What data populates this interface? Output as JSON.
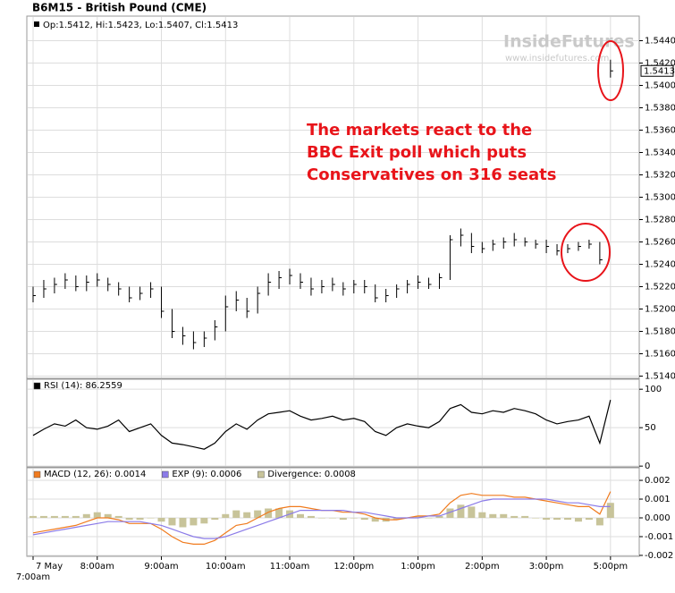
{
  "chart_data": [
    {
      "type": "ohlc",
      "title": "B6M15 - British Pound (CME)",
      "legend": "Op:1.5412, Hi:1.5423, Lo:1.5407, Cl:1.5413",
      "last_price_label": "1.5413",
      "watermark": [
        "InsideFutures",
        "www.insidefutures.com"
      ],
      "annotation": [
        "The markets react to the",
        "BBC Exit poll which puts",
        "Conservatives on 316 seats"
      ],
      "date_label": "7 May",
      "categories": [
        "7:00am",
        null,
        null,
        null,
        null,
        null,
        "8:00am",
        null,
        null,
        null,
        null,
        null,
        "9:00am",
        null,
        null,
        null,
        null,
        null,
        "10:00am",
        null,
        null,
        null,
        null,
        null,
        "11:00am",
        null,
        null,
        null,
        null,
        null,
        "12:00pm",
        null,
        null,
        null,
        null,
        null,
        "1:00pm",
        null,
        null,
        null,
        null,
        null,
        "2:00pm",
        null,
        null,
        null,
        null,
        null,
        "3:00pm",
        null,
        null,
        null,
        null,
        null,
        "5:00pm"
      ],
      "high": [
        1.522,
        1.5226,
        1.5228,
        1.5232,
        1.523,
        1.523,
        1.5232,
        1.5228,
        1.5224,
        1.522,
        1.522,
        1.5224,
        1.522,
        1.52,
        1.5184,
        1.518,
        1.518,
        1.519,
        1.5212,
        1.5216,
        1.521,
        1.522,
        1.5232,
        1.5234,
        1.5236,
        1.5232,
        1.5228,
        1.5226,
        1.5228,
        1.5224,
        1.5226,
        1.5226,
        1.5222,
        1.5218,
        1.5222,
        1.5226,
        1.523,
        1.5228,
        1.5232,
        1.5266,
        1.5272,
        1.5268,
        1.526,
        1.5262,
        1.5264,
        1.5268,
        1.5264,
        1.5262,
        1.5262,
        1.5258,
        1.5258,
        1.526,
        1.5262,
        1.526,
        1.5423
      ],
      "low": [
        1.5206,
        1.521,
        1.5214,
        1.5218,
        1.5216,
        1.5216,
        1.522,
        1.5216,
        1.5212,
        1.5206,
        1.5208,
        1.521,
        1.5192,
        1.5174,
        1.5168,
        1.5164,
        1.5166,
        1.5172,
        1.518,
        1.5198,
        1.5192,
        1.5196,
        1.5212,
        1.5218,
        1.5222,
        1.5218,
        1.5212,
        1.5214,
        1.5216,
        1.5212,
        1.5214,
        1.5214,
        1.5206,
        1.5206,
        1.521,
        1.5214,
        1.5218,
        1.5218,
        1.5218,
        1.5226,
        1.5256,
        1.525,
        1.525,
        1.5252,
        1.5254,
        1.5256,
        1.5256,
        1.5254,
        1.525,
        1.5248,
        1.525,
        1.5252,
        1.5254,
        1.524,
        1.5407
      ],
      "close": [
        1.5212,
        1.5218,
        1.5222,
        1.5226,
        1.522,
        1.5224,
        1.5226,
        1.5222,
        1.5218,
        1.521,
        1.5214,
        1.5218,
        1.5198,
        1.518,
        1.5176,
        1.517,
        1.5174,
        1.5184,
        1.5202,
        1.5208,
        1.5198,
        1.5214,
        1.5224,
        1.5228,
        1.523,
        1.5224,
        1.5218,
        1.522,
        1.5222,
        1.5218,
        1.5222,
        1.522,
        1.521,
        1.5212,
        1.5218,
        1.5222,
        1.5224,
        1.5222,
        1.5228,
        1.5262,
        1.5266,
        1.5256,
        1.5254,
        1.5258,
        1.526,
        1.5262,
        1.526,
        1.5258,
        1.5256,
        1.5252,
        1.5254,
        1.5256,
        1.5258,
        1.5244,
        1.5413
      ],
      "color": "#000000",
      "ylim": [
        1.5138,
        1.5462
      ],
      "yticks": [
        {
          "value": 1.544,
          "label": "1.5440"
        },
        {
          "value": 1.542,
          "label": "1.5420"
        },
        {
          "value": 1.54,
          "label": "1.5400"
        },
        {
          "value": 1.538,
          "label": "1.5380"
        },
        {
          "value": 1.536,
          "label": "1.5360"
        },
        {
          "value": 1.534,
          "label": "1.5340"
        },
        {
          "value": 1.532,
          "label": "1.5320"
        },
        {
          "value": 1.53,
          "label": "1.5300"
        },
        {
          "value": 1.528,
          "label": "1.5280"
        },
        {
          "value": 1.526,
          "label": "1.5260"
        },
        {
          "value": 1.524,
          "label": "1.5240"
        },
        {
          "value": 1.522,
          "label": "1.5220"
        },
        {
          "value": 1.52,
          "label": "1.5200"
        },
        {
          "value": 1.518,
          "label": "1.5180"
        },
        {
          "value": 1.516,
          "label": "1.5160"
        },
        {
          "value": 1.514,
          "label": "1.5140"
        }
      ],
      "grid": true
    },
    {
      "type": "line",
      "series": [
        {
          "name": "RSI (14): 86.2559",
          "color": "#000000",
          "kind": "line",
          "values": [
            40,
            48,
            55,
            52,
            60,
            50,
            48,
            52,
            60,
            45,
            50,
            55,
            40,
            30,
            28,
            25,
            22,
            30,
            45,
            55,
            48,
            60,
            68,
            70,
            72,
            65,
            60,
            62,
            65,
            60,
            62,
            58,
            45,
            40,
            50,
            55,
            52,
            50,
            58,
            75,
            80,
            70,
            68,
            72,
            70,
            75,
            72,
            68,
            60,
            55,
            58,
            60,
            65,
            30,
            86
          ]
        }
      ],
      "ylim": [
        -1,
        113
      ],
      "yticks": [
        100,
        50,
        0
      ],
      "grid": true
    },
    {
      "type": "line",
      "series": [
        {
          "name": "MACD (12, 26): 0.0014",
          "color": "#f07b1e",
          "kind": "line",
          "values": [
            -0.0008,
            -0.0007,
            -0.0006,
            -0.0005,
            -0.0004,
            -0.0002,
            0,
            0,
            -0.0001,
            -0.0003,
            -0.0003,
            -0.0003,
            -0.0006,
            -0.001,
            -0.0013,
            -0.0014,
            -0.0014,
            -0.0012,
            -0.0008,
            -0.0004,
            -0.0003,
            0,
            0.0003,
            0.0005,
            0.0006,
            0.0006,
            0.0005,
            0.0004,
            0.0004,
            0.0003,
            0.0003,
            0.0002,
            0,
            -0.0001,
            -0.0001,
            0,
            0.0001,
            0.0001,
            0.0002,
            0.0008,
            0.0012,
            0.0013,
            0.0012,
            0.0012,
            0.0012,
            0.0011,
            0.0011,
            0.001,
            0.0009,
            0.0008,
            0.0007,
            0.0006,
            0.0006,
            0.0002,
            0.0014
          ]
        },
        {
          "name": "EXP (9): 0.0006",
          "color": "#8b7be8",
          "kind": "line",
          "values": [
            -0.0009,
            -0.0008,
            -0.0007,
            -0.0006,
            -0.0005,
            -0.0004,
            -0.0003,
            -0.0002,
            -0.0002,
            -0.0002,
            -0.0002,
            -0.0003,
            -0.0004,
            -0.0006,
            -0.0008,
            -0.001,
            -0.0011,
            -0.0011,
            -0.001,
            -0.0008,
            -0.0006,
            -0.0004,
            -0.0002,
            0,
            0.0002,
            0.0004,
            0.0004,
            0.0004,
            0.0004,
            0.0004,
            0.0003,
            0.0003,
            0.0002,
            0.0001,
            0,
            0,
            0,
            0.0001,
            0.0001,
            0.0003,
            0.0005,
            0.0007,
            0.0009,
            0.001,
            0.001,
            0.001,
            0.001,
            0.001,
            0.001,
            0.0009,
            0.0008,
            0.0008,
            0.0007,
            0.0006,
            0.0006
          ]
        },
        {
          "name": "Divergence: 0.0008",
          "color": "#c8c49a",
          "kind": "bar",
          "values": [
            0.0001,
            0.0001,
            0.0001,
            0.0001,
            0.0001,
            0.0002,
            0.0003,
            0.0002,
            0.0001,
            -0.0001,
            -0.0001,
            0,
            -0.0002,
            -0.0004,
            -0.0005,
            -0.0004,
            -0.0003,
            -0.0001,
            0.0002,
            0.0004,
            0.0003,
            0.0004,
            0.0005,
            0.0005,
            0.0004,
            0.0002,
            0.0001,
            0,
            0,
            -0.0001,
            0,
            -0.0001,
            -0.0002,
            -0.0002,
            -0.0001,
            0,
            0.0001,
            0,
            0.0001,
            0.0005,
            0.0007,
            0.0006,
            0.0003,
            0.0002,
            0.0002,
            0.0001,
            0.0001,
            0,
            -0.0001,
            -0.0001,
            -0.0001,
            -0.0002,
            -0.0001,
            -0.0004,
            0.0008
          ]
        }
      ],
      "ylim": [
        -0.00205,
        0.00267
      ],
      "yticks": [
        0.002,
        0.001,
        {
          "value": 0,
          "label": "0.000"
        },
        -0.001,
        -0.002
      ],
      "grid": true
    }
  ]
}
